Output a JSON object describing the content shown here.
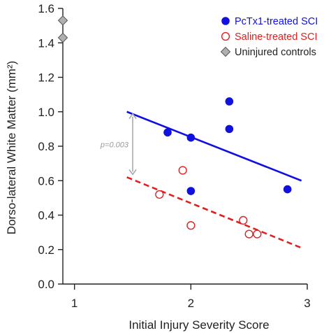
{
  "chart_data": {
    "type": "scatter",
    "xlabel": "Initial Injury Severity Score",
    "ylabel": "Dorso-lateral White Matter (mm²)",
    "xlim": [
      0.9,
      3.0
    ],
    "ylim": [
      0.0,
      1.6
    ],
    "xticks": [
      1,
      2,
      3
    ],
    "yticks": [
      0.0,
      0.2,
      0.4,
      0.6,
      0.8,
      1.0,
      1.2,
      1.4,
      1.6
    ],
    "ytick_labels": [
      "0.0",
      "0.2",
      "0.4",
      "0.6",
      "0.8",
      "1.0",
      "1.2",
      "1.4",
      "1.6"
    ],
    "grid": false,
    "legend_position": "top-right",
    "series": [
      {
        "name": "PcTx1-treated SCI",
        "marker": "filled-circle",
        "color": "#1010e0",
        "points": [
          [
            1.8,
            0.88
          ],
          [
            2.0,
            0.85
          ],
          [
            2.0,
            0.54
          ],
          [
            2.33,
            1.06
          ],
          [
            2.33,
            0.9
          ],
          [
            2.83,
            0.55
          ]
        ],
        "fit_line": {
          "style": "solid",
          "x": [
            1.45,
            2.95
          ],
          "y": [
            1.0,
            0.6
          ]
        }
      },
      {
        "name": "Saline-treated SCI",
        "marker": "open-circle",
        "color": "#e02020",
        "points": [
          [
            1.73,
            0.52
          ],
          [
            1.93,
            0.66
          ],
          [
            2.0,
            0.34
          ],
          [
            2.45,
            0.37
          ],
          [
            2.5,
            0.29
          ],
          [
            2.57,
            0.29
          ]
        ],
        "fit_line": {
          "style": "dashed",
          "x": [
            1.45,
            2.95
          ],
          "y": [
            0.62,
            0.21
          ]
        }
      },
      {
        "name": "Uninjured controls",
        "marker": "diamond",
        "color": "#b0b0b0",
        "points": [
          [
            0.9,
            1.53
          ],
          [
            0.9,
            1.43
          ]
        ]
      }
    ],
    "annotations": [
      {
        "text": "p=0.003",
        "arrow": "double",
        "x": 1.5,
        "y_from": 0.62,
        "y_to": 1.0
      }
    ]
  }
}
